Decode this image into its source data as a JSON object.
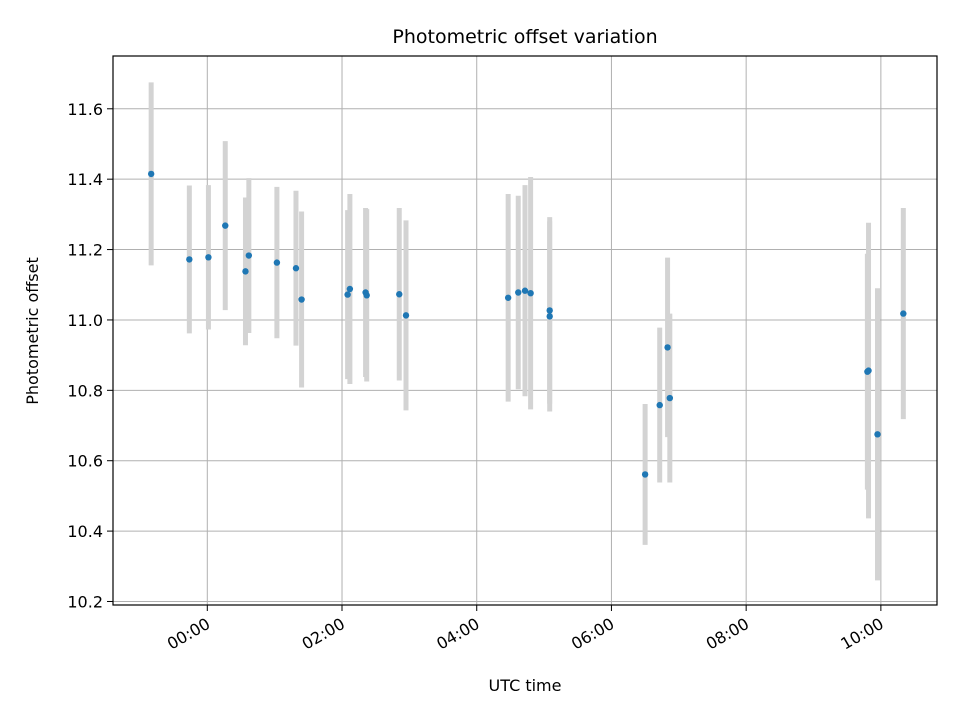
{
  "chart_data": {
    "type": "scatter",
    "title": "Photometric offset variation",
    "xlabel": "UTC time",
    "ylabel": "Photometric offset",
    "grid": true,
    "colors": {
      "point": "#1f77b4",
      "errorbar": "#d3d3d3",
      "grid": "#b0b0b0",
      "axes": "#000000"
    },
    "xlim": [
      "-1:24",
      "10:50"
    ],
    "ylim": [
      10.19,
      11.75
    ],
    "xticks": [
      "00:00",
      "02:00",
      "04:00",
      "06:00",
      "08:00",
      "10:00"
    ],
    "yticks": [
      "10.2",
      "10.4",
      "10.6",
      "10.8",
      "11.0",
      "11.2",
      "11.4",
      "11.6"
    ],
    "series": [
      {
        "points": [
          {
            "x": "-0:50",
            "y": 11.415,
            "err": 0.26
          },
          {
            "x": "-0:16",
            "y": 11.172,
            "err": 0.21
          },
          {
            "x": "0:01",
            "y": 11.178,
            "err": 0.205
          },
          {
            "x": "0:16",
            "y": 11.268,
            "err": 0.24
          },
          {
            "x": "0:34",
            "y": 11.138,
            "err": 0.21
          },
          {
            "x": "0:37",
            "y": 11.183,
            "err": 0.22
          },
          {
            "x": "1:02",
            "y": 11.163,
            "err": 0.215
          },
          {
            "x": "1:19",
            "y": 11.147,
            "err": 0.22
          },
          {
            "x": "1:24",
            "y": 11.058,
            "err": 0.25
          },
          {
            "x": "2:05",
            "y": 11.072,
            "err": 0.24
          },
          {
            "x": "2:07",
            "y": 11.088,
            "err": 0.27
          },
          {
            "x": "2:21",
            "y": 11.078,
            "err": 0.24
          },
          {
            "x": "2:22",
            "y": 11.07,
            "err": 0.245
          },
          {
            "x": "2:51",
            "y": 11.073,
            "err": 0.245
          },
          {
            "x": "2:57",
            "y": 11.013,
            "err": 0.27
          },
          {
            "x": "4:28",
            "y": 11.063,
            "err": 0.295
          },
          {
            "x": "4:37",
            "y": 11.078,
            "err": 0.275
          },
          {
            "x": "4:43",
            "y": 11.083,
            "err": 0.3
          },
          {
            "x": "4:48",
            "y": 11.076,
            "err": 0.33
          },
          {
            "x": "5:05",
            "y": 11.027,
            "err": 0.265
          },
          {
            "x": "5:05",
            "y": 11.01,
            "err": 0.27
          },
          {
            "x": "6:30",
            "y": 10.561,
            "err": 0.2
          },
          {
            "x": "6:43",
            "y": 10.758,
            "err": 0.22
          },
          {
            "x": "6:50",
            "y": 10.922,
            "err": 0.255
          },
          {
            "x": "6:52",
            "y": 10.778,
            "err": 0.24
          },
          {
            "x": "9:48",
            "y": 10.853,
            "err": 0.335
          },
          {
            "x": "9:49",
            "y": 10.856,
            "err": 0.42
          },
          {
            "x": "9:57",
            "y": 10.675,
            "err": 0.415
          },
          {
            "x": "10:20",
            "y": 11.018,
            "err": 0.3
          }
        ]
      }
    ]
  }
}
